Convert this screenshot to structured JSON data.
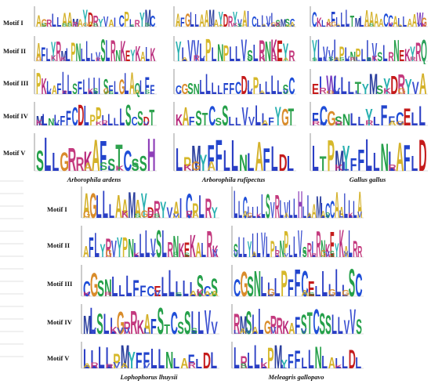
{
  "figure": {
    "motif_labels": [
      "Motif I",
      "Motif II",
      "Motif III",
      "Motif IV",
      "Motif V"
    ],
    "top_species": [
      "Arborophila ardens",
      "Arborophila rufipectus",
      "Gallus gallus"
    ],
    "bottom_species": [
      "Lophophorus lhuysii",
      "Meleagris gallopavo"
    ]
  },
  "logos": {
    "ardens": [
      "AGRLLAAMAYDRYVAICPLRYMC",
      "AFLYRMLPNLLLVSLRNKEYKALK",
      "PKLAFLLSFLLLISFLGLAQLFF",
      "MLNLFFCDLPPLLLLSCSDT",
      "SLLGRRKAFSTCSSH"
    ],
    "rufipectus": [
      "AFGLLAAMAYDRYVAICLLVLSMSC",
      "YLVVLPLNPLLVSLRNKEYR",
      "CGSNLLLLFFCDLPLLLLSC",
      "KAFSTCSSLLVVLLFYGT",
      "LPMYFFLLNLAFLDL"
    ],
    "gallus": [
      "CKLAFLLLTMLAAAACCALLAAWG",
      "YLVVLPLNPLLVSLRNEKYRQ",
      "EIWLLLTYMSYDRYVA",
      "FCGSNLLYLFFCELL",
      "LTPMYFFLLNLAFLD"
    ],
    "lhuysii": [
      "AGLLLAAMAYDRYVAICPLRY",
      "AFLYRVYPNLLLVSLRNKEKALRK",
      "CGSNLLLFFCELLLLLSCS",
      "MLSLLGRRKAFSTCSSLLVV",
      "LLLLPMYFFLLNLAFLDL"
    ],
    "meleagris": [
      "LLCLLLLSVRLVLLHLLAMLCCAALLLA",
      "SLLYLLVLPLNPLLVSRLRNKEYKALRR",
      "CGSNLLLPFFCELLLLLSC",
      "RMSLLGRRKAFSTCSSLLVVS",
      "LRLLLPMYFFLLNLALLDL"
    ]
  }
}
